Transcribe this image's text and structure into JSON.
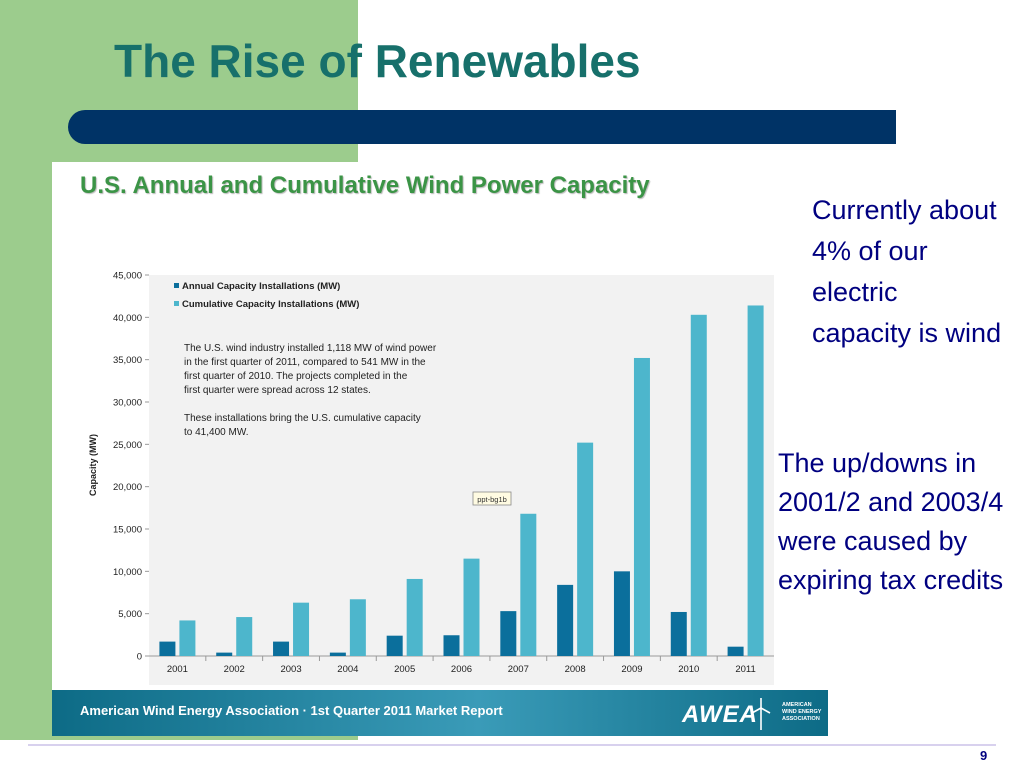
{
  "slide": {
    "title": "The Rise of Renewables",
    "page_number": "9",
    "side_note_1": "Currently about 4% of our electric capacity is wind",
    "side_note_2": "The up/downs in 2001/2 and 2003/4 were caused by expiring tax credits",
    "colors": {
      "title": "#17706b",
      "green_panel": "#9ccc8d",
      "title_bar": "#003366",
      "body_text": "#000080"
    }
  },
  "chart": {
    "heading": "U.S. Annual and Cumulative Wind Power Capacity",
    "footer": "American Wind Energy Association · 1st Quarter 2011 Market Report",
    "logo": {
      "wordmark": "AWEA",
      "tagline": "AMERICAN WIND ENERGY ASSOCIATION"
    },
    "annotation_paragraphs": [
      "The U.S. wind industry installed 1,118 MW of wind power in the first quarter of 2011, compared to 541 MW in the first quarter of 2010. The projects completed in the first quarter were spread across 12 states.",
      "These installations bring the U.S. cumulative capacity to 41,400 MW."
    ],
    "stamp": "ppt-bg1b"
  },
  "chart_data": {
    "type": "bar",
    "categories": [
      "2001",
      "2002",
      "2003",
      "2004",
      "2005",
      "2006",
      "2007",
      "2008",
      "2009",
      "2010",
      "2011"
    ],
    "series": [
      {
        "name": "Annual Capacity Installations (MW)",
        "color": "#0b6f9c",
        "values": [
          1700,
          400,
          1700,
          400,
          2400,
          2450,
          5300,
          8400,
          10000,
          5200,
          1100
        ]
      },
      {
        "name": "Cumulative Capacity Installations (MW)",
        "color": "#4db6cc",
        "values": [
          4200,
          4600,
          6300,
          6700,
          9100,
          11500,
          16800,
          25200,
          35200,
          40300,
          41400
        ]
      }
    ],
    "ylabel": "Capacity (MW)",
    "ylim": [
      0,
      45000
    ],
    "yticks": [
      0,
      5000,
      10000,
      15000,
      20000,
      25000,
      30000,
      35000,
      40000,
      45000
    ],
    "ytick_labels": [
      "0",
      "5,000",
      "10,000",
      "15,000",
      "20,000",
      "25,000",
      "30,000",
      "35,000",
      "40,000",
      "45,000"
    ],
    "grid": false,
    "legend_position": "top-left"
  }
}
